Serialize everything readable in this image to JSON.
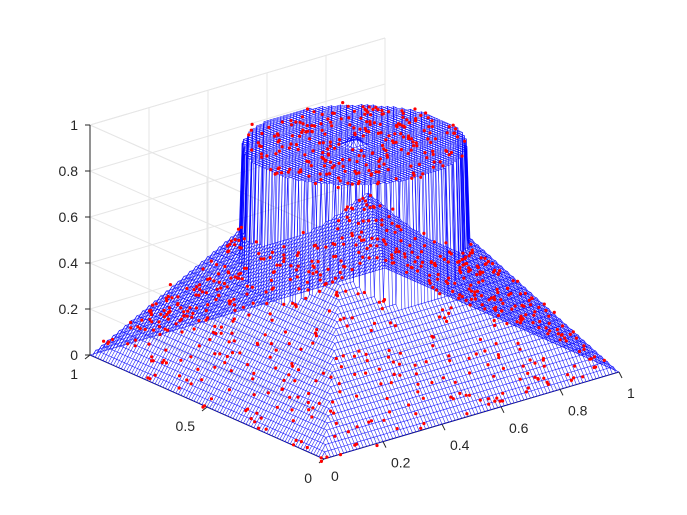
{
  "chart_data": {
    "type": "surface3d",
    "title": "",
    "xlabel": "",
    "ylabel": "",
    "zlabel": "",
    "xlim": [
      0,
      1
    ],
    "ylim": [
      0,
      1
    ],
    "zlim": [
      0,
      1
    ],
    "x_ticks": [
      {
        "value": 0.2,
        "label": "0.2"
      },
      {
        "value": 0.4,
        "label": "0.4"
      },
      {
        "value": 0.6,
        "label": "0.6"
      },
      {
        "value": 0.8,
        "label": "0.8"
      },
      {
        "value": 1,
        "label": "1"
      }
    ],
    "y_ticks": [
      {
        "value": 0,
        "label": "0"
      },
      {
        "value": 0.5,
        "label": "0.5"
      },
      {
        "value": 1,
        "label": "1"
      }
    ],
    "z_ticks": [
      {
        "value": 0,
        "label": "0"
      },
      {
        "value": 0.2,
        "label": "0.2"
      },
      {
        "value": 0.4,
        "label": "0.4"
      },
      {
        "value": 0.6,
        "label": "0.6"
      },
      {
        "value": 0.8,
        "label": "0.8"
      },
      {
        "value": 1,
        "label": "1"
      }
    ],
    "x_origin_label": "0",
    "grid": true,
    "mesh_color": "#0000ff",
    "point_color": "#ff0000",
    "surface": {
      "description_function": "pyramid z = 1 - 2*max(|x-0.5|,|y-0.5|) with flat-top cylinder z = 0.95 for radius < 0.3 about (0.5,0.5)",
      "pyramid_apex_value": 1,
      "plateau_value": 0.95,
      "plateau_radius": 0.3
    },
    "scatter_points_count": 900
  }
}
